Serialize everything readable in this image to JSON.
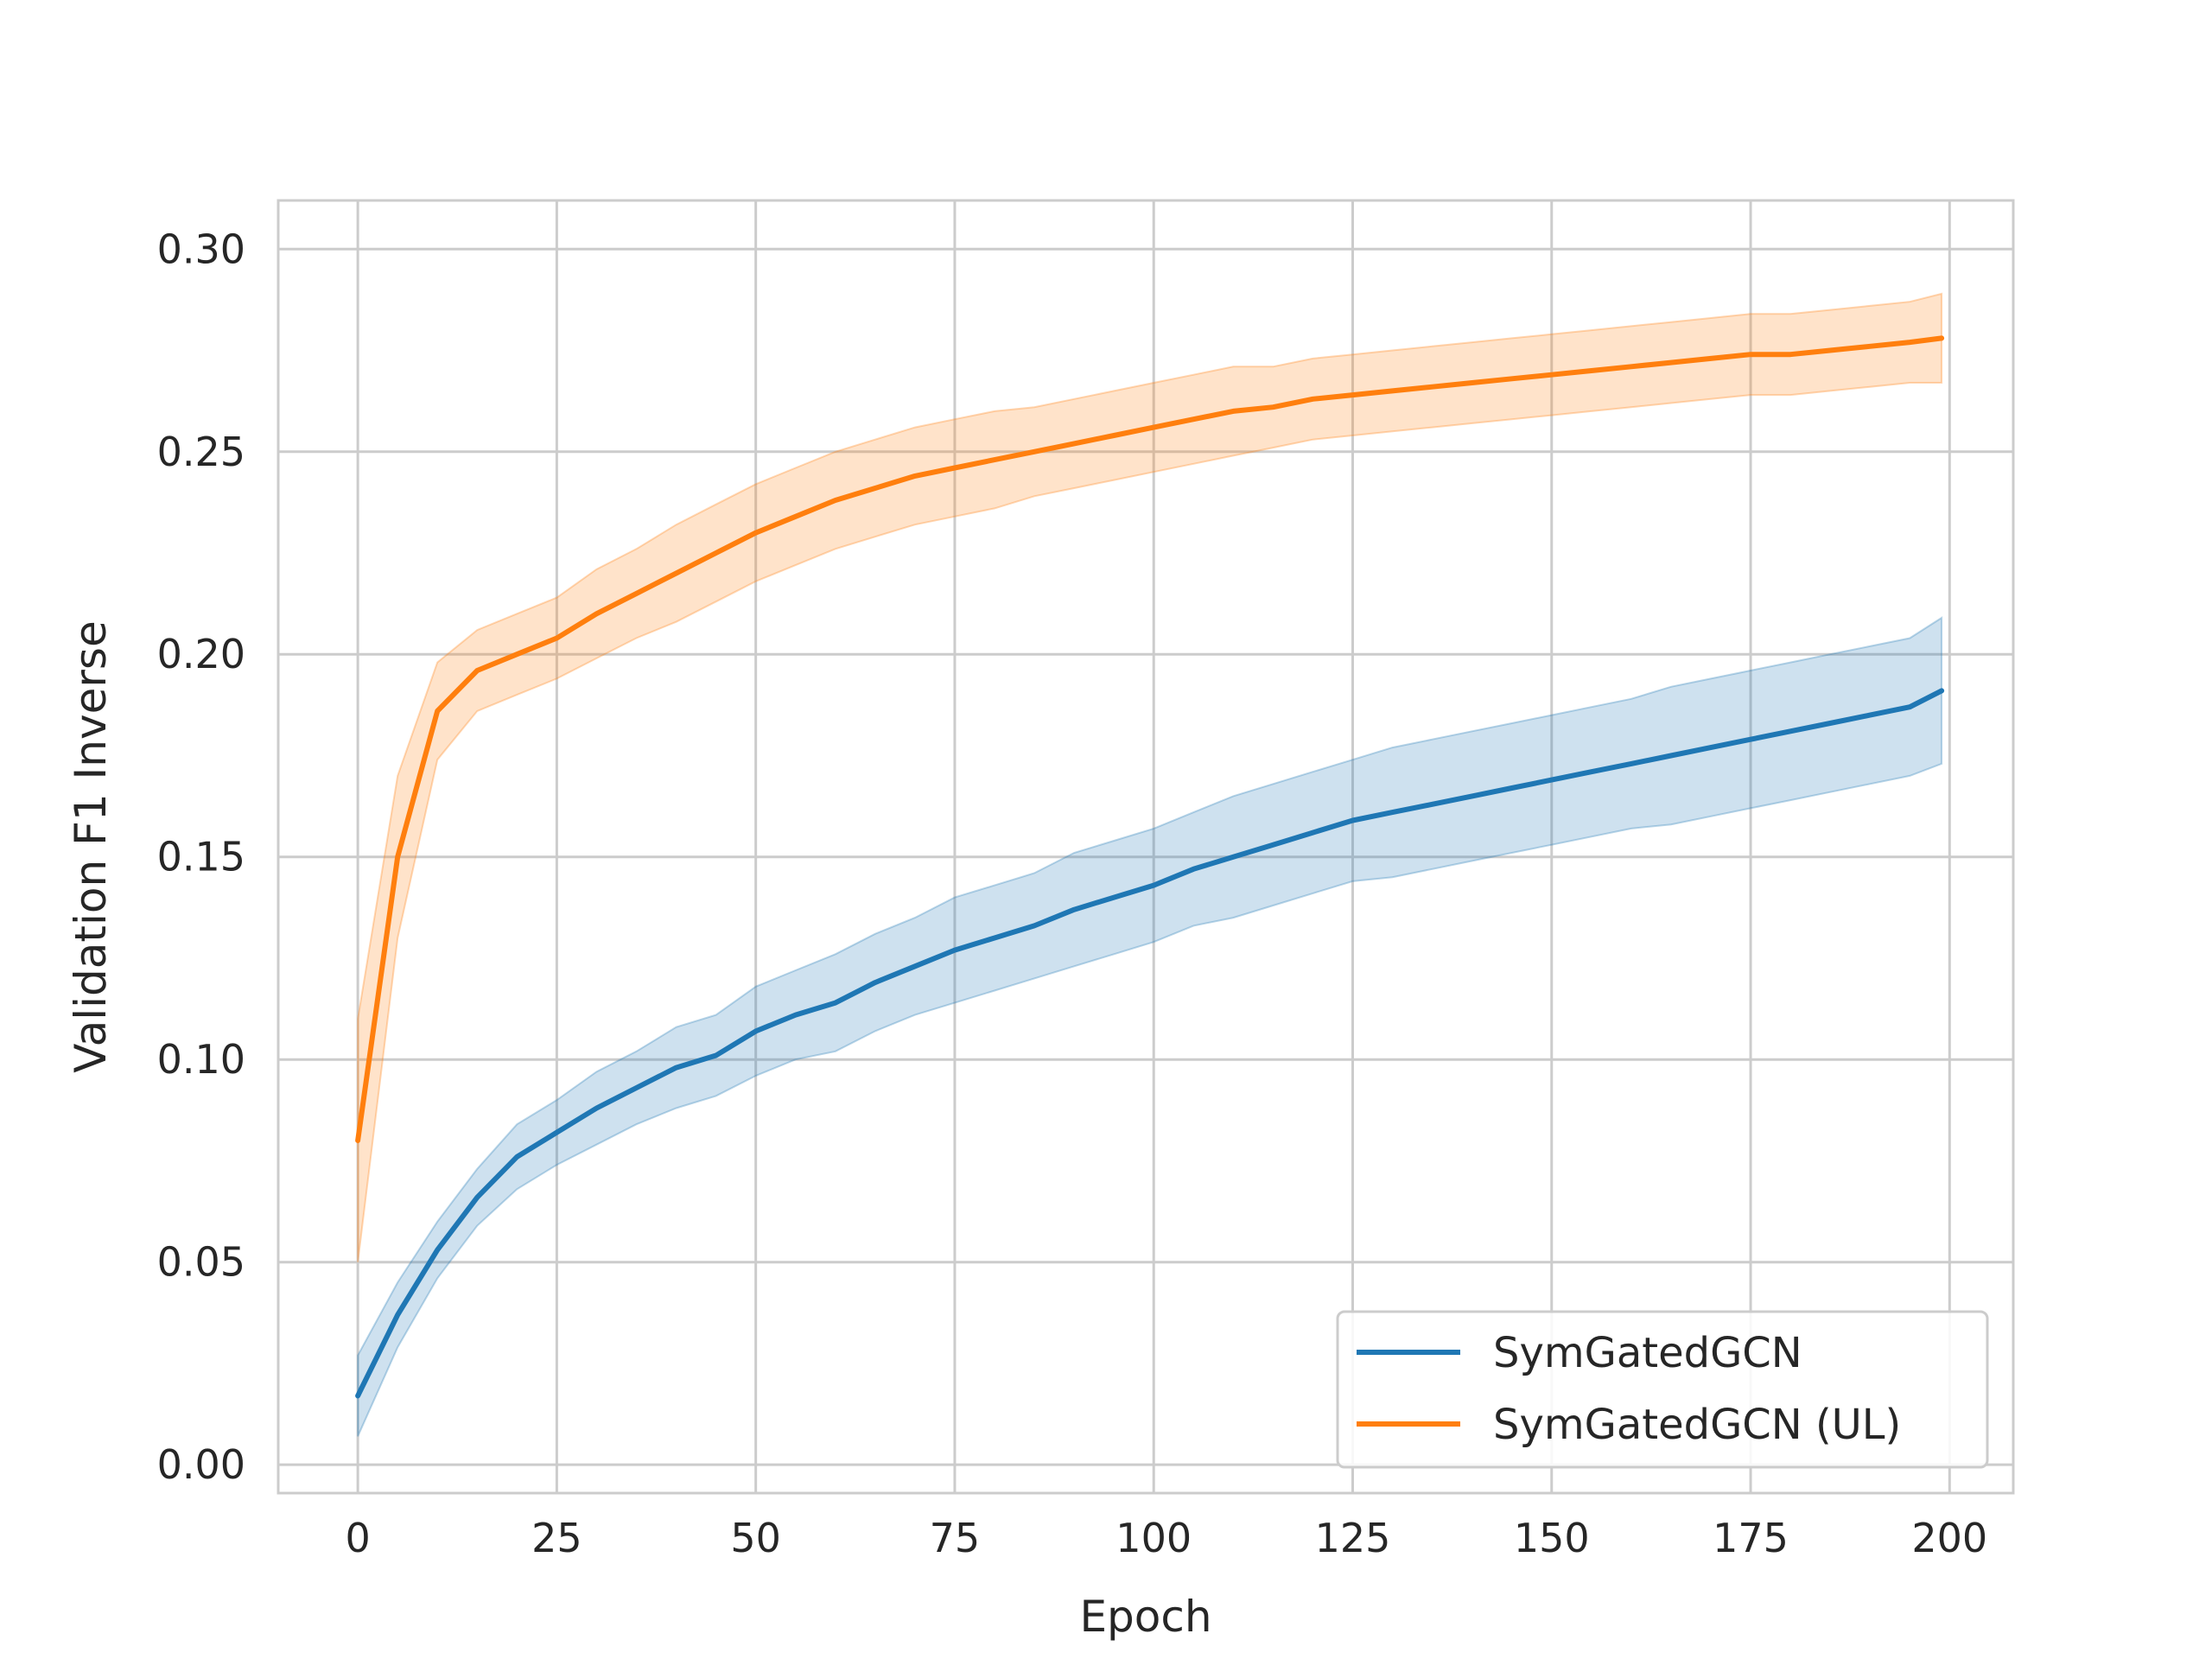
{
  "chart_data": {
    "type": "line",
    "title": "",
    "xlabel": "Epoch",
    "ylabel": "Validation F1 Inverse",
    "xlim": [
      -10,
      208
    ],
    "ylim": [
      -0.007,
      0.312
    ],
    "xticks": [
      0,
      25,
      50,
      75,
      100,
      125,
      150,
      175,
      200
    ],
    "xtick_labels": [
      "0",
      "25",
      "50",
      "75",
      "100",
      "125",
      "150",
      "175",
      "200"
    ],
    "yticks": [
      0.0,
      0.05,
      0.1,
      0.15,
      0.2,
      0.25,
      0.3
    ],
    "ytick_labels": [
      "0.00",
      "0.05",
      "0.10",
      "0.15",
      "0.20",
      "0.25",
      "0.30"
    ],
    "grid": true,
    "legend_position": "lower-right",
    "shaded_band": "confidence interval around each series",
    "x": [
      0,
      5,
      10,
      15,
      20,
      25,
      30,
      35,
      40,
      45,
      50,
      55,
      60,
      65,
      70,
      75,
      80,
      85,
      90,
      95,
      100,
      105,
      110,
      115,
      120,
      125,
      130,
      135,
      140,
      145,
      150,
      155,
      160,
      165,
      170,
      175,
      180,
      185,
      190,
      195,
      199
    ],
    "series": [
      {
        "name": "SymGatedGCN",
        "color": "#1f77b4",
        "values": [
          0.017,
          0.037,
          0.053,
          0.066,
          0.076,
          0.082,
          0.088,
          0.093,
          0.098,
          0.101,
          0.107,
          0.111,
          0.114,
          0.119,
          0.123,
          0.127,
          0.13,
          0.133,
          0.137,
          0.14,
          0.143,
          0.147,
          0.15,
          0.153,
          0.156,
          0.159,
          0.161,
          0.163,
          0.165,
          0.167,
          0.169,
          0.171,
          0.173,
          0.175,
          0.177,
          0.179,
          0.181,
          0.183,
          0.185,
          0.187,
          0.191
        ],
        "band": [
          0.01,
          0.008,
          0.007,
          0.007,
          0.008,
          0.008,
          0.009,
          0.009,
          0.01,
          0.01,
          0.011,
          0.011,
          0.012,
          0.012,
          0.012,
          0.013,
          0.013,
          0.013,
          0.014,
          0.014,
          0.014,
          0.014,
          0.015,
          0.015,
          0.015,
          0.015,
          0.016,
          0.016,
          0.016,
          0.016,
          0.016,
          0.016,
          0.016,
          0.017,
          0.017,
          0.017,
          0.017,
          0.017,
          0.017,
          0.017,
          0.018
        ]
      },
      {
        "name": "SymGatedGCN (UL)",
        "color": "#ff7f0e",
        "values": [
          0.08,
          0.15,
          0.186,
          0.196,
          0.2,
          0.204,
          0.21,
          0.215,
          0.22,
          0.225,
          0.23,
          0.234,
          0.238,
          0.241,
          0.244,
          0.246,
          0.248,
          0.25,
          0.252,
          0.254,
          0.256,
          0.258,
          0.26,
          0.261,
          0.263,
          0.264,
          0.265,
          0.266,
          0.267,
          0.268,
          0.269,
          0.27,
          0.271,
          0.272,
          0.273,
          0.274,
          0.274,
          0.275,
          0.276,
          0.277,
          0.278
        ],
        "band": [
          0.03,
          0.02,
          0.012,
          0.01,
          0.01,
          0.01,
          0.011,
          0.011,
          0.012,
          0.012,
          0.012,
          0.012,
          0.012,
          0.012,
          0.012,
          0.012,
          0.012,
          0.011,
          0.011,
          0.011,
          0.011,
          0.011,
          0.011,
          0.01,
          0.01,
          0.01,
          0.01,
          0.01,
          0.01,
          0.01,
          0.01,
          0.01,
          0.01,
          0.01,
          0.01,
          0.01,
          0.01,
          0.01,
          0.01,
          0.01,
          0.011
        ]
      }
    ]
  }
}
